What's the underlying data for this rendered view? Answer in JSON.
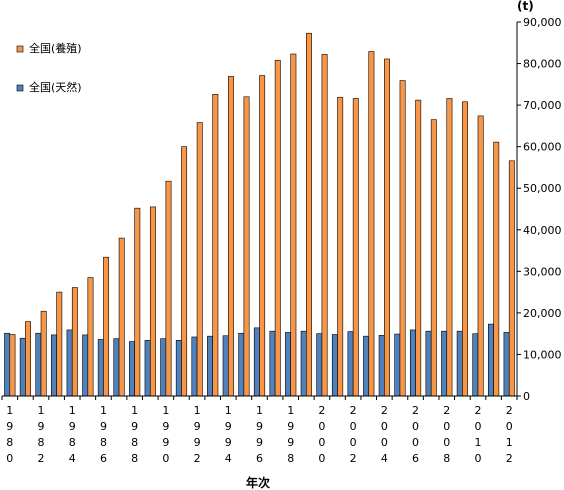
{
  "chart_data": {
    "type": "bar",
    "unit_label": "(t)",
    "xlabel": "年次",
    "ylabel": "",
    "ylim": [
      0,
      90000
    ],
    "y_ticks": [
      "0",
      "10,000",
      "20,000",
      "30,000",
      "40,000",
      "50,000",
      "60,000",
      "70,000",
      "80,000",
      "90,000"
    ],
    "y_tick_values": [
      0,
      10000,
      20000,
      30000,
      40000,
      50000,
      60000,
      70000,
      80000,
      90000
    ],
    "y_axis_position": "right",
    "grid": false,
    "legend_position": "top-left",
    "x": [
      1980,
      1981,
      1982,
      1983,
      1984,
      1985,
      1986,
      1987,
      1988,
      1989,
      1990,
      1991,
      1992,
      1993,
      1994,
      1995,
      1996,
      1997,
      1998,
      1999,
      2000,
      2001,
      2002,
      2003,
      2004,
      2005,
      2006,
      2007,
      2008,
      2009,
      2010,
      2011,
      2012
    ],
    "x_tick_labels": [
      "1980",
      "1982",
      "1984",
      "1986",
      "1988",
      "1990",
      "1992",
      "1994",
      "1996",
      "1998",
      "2000",
      "2002",
      "2004",
      "2006",
      "2008",
      "2010",
      "2012"
    ],
    "series": [
      {
        "name": "全国(天然)",
        "color": "#4f81bd",
        "values": [
          15100,
          13900,
          15100,
          14700,
          15900,
          14700,
          13600,
          13800,
          13100,
          13400,
          13800,
          13400,
          14200,
          14400,
          14500,
          15100,
          16400,
          15600,
          15300,
          15600,
          15000,
          14800,
          15500,
          14400,
          14600,
          14900,
          15900,
          15600,
          15600,
          15600,
          15000,
          17300,
          15300
        ]
      },
      {
        "name": "全国(養殖)",
        "color": "#f79646",
        "values": [
          14800,
          17900,
          20400,
          25000,
          26100,
          28500,
          33400,
          38000,
          45200,
          45500,
          51700,
          60000,
          65800,
          72600,
          76900,
          72000,
          77100,
          80800,
          82300,
          87300,
          82200,
          71900,
          71600,
          82900,
          81100,
          75900,
          71200,
          66500,
          71600,
          70800,
          67400,
          61100,
          56600
        ]
      }
    ]
  }
}
